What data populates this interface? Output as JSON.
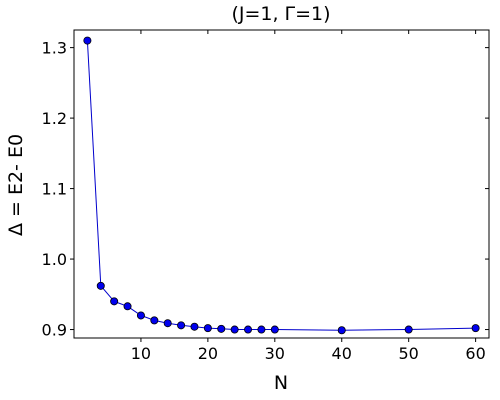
{
  "chart_data": {
    "type": "line",
    "title": "(J=1, Γ=1)",
    "xlabel": "N",
    "ylabel": "Δ = E2- E0",
    "xlim": [
      0,
      62
    ],
    "ylim": [
      0.888,
      1.325
    ],
    "xticks": [
      10,
      20,
      30,
      40,
      50,
      60
    ],
    "yticks": [
      0.9,
      1.0,
      1.1,
      1.2,
      1.3
    ],
    "ytick_labels": [
      "0.9",
      "1.0",
      "1.1",
      "1.2",
      "1.3"
    ],
    "grid": false,
    "series_color": "#0000cc",
    "marker_color": "#0000ee",
    "marker": "circle",
    "series": [
      {
        "x": [
          2,
          4,
          6,
          8,
          10,
          12,
          14,
          16,
          18,
          20,
          22,
          24,
          26,
          28,
          30,
          40,
          50,
          60
        ],
        "y": [
          1.31,
          0.962,
          0.94,
          0.933,
          0.92,
          0.913,
          0.909,
          0.906,
          0.904,
          0.902,
          0.901,
          0.9,
          0.9,
          0.9,
          0.9,
          0.899,
          0.9,
          0.902
        ]
      }
    ]
  }
}
